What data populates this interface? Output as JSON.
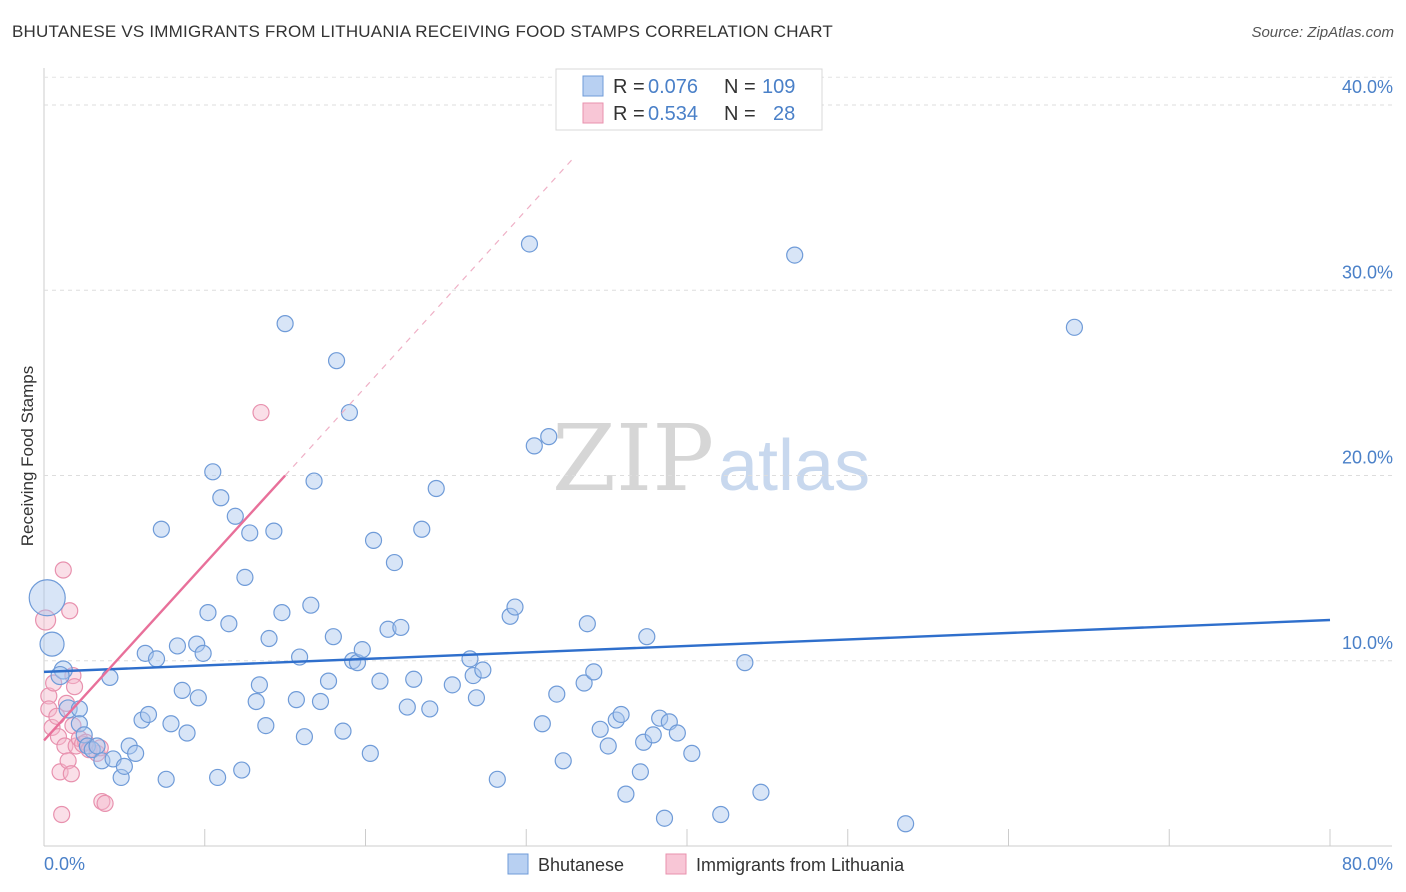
{
  "title": "BHUTANESE VS IMMIGRANTS FROM LITHUANIA RECEIVING FOOD STAMPS CORRELATION CHART",
  "source": "Source: ZipAtlas.com",
  "watermark": {
    "zip": "ZIP",
    "atlas": "atlas"
  },
  "legend": {
    "rows": [
      {
        "r_label": "R = ",
        "r_value": "0.076",
        "n_label": "N = ",
        "n_value": "109"
      },
      {
        "r_label": "R = ",
        "r_value": "0.534",
        "n_label": "N = ",
        "n_value": "28"
      }
    ]
  },
  "bottom_legend": {
    "series1": "Bhutanese",
    "series2": "Immigrants from Lithuania"
  },
  "chart_data": {
    "type": "scatter",
    "ylabel": "Receiving Food Stamps",
    "xlim": [
      0,
      80
    ],
    "ylim": [
      0,
      42
    ],
    "x_tick_labels": [
      "0.0%",
      "80.0%"
    ],
    "y_ticks": [
      10,
      20,
      30,
      40
    ],
    "y_tick_labels": [
      "10.0%",
      "20.0%",
      "30.0%",
      "40.0%"
    ],
    "colors": {
      "blue": "#4a80c8",
      "blue_fill": "#a9c6ee",
      "pink": "#e8709a",
      "pink_fill": "#f5b8cc",
      "text_blue": "#4a80c8"
    },
    "series": [
      {
        "name": "Bhutanese",
        "color": "#a9c6ee",
        "stroke": "#6f9bd8",
        "trend": {
          "x": [
            0,
            80
          ],
          "y": [
            9.4,
            12.2
          ],
          "style": "solid",
          "color": "#2f6fcc"
        },
        "points": [
          [
            0.2,
            13.4,
            18
          ],
          [
            0.5,
            10.9,
            12
          ],
          [
            1.2,
            9.5,
            9
          ],
          [
            1.0,
            9.2,
            9
          ],
          [
            1.5,
            7.4,
            9
          ],
          [
            2.2,
            7.4,
            8
          ],
          [
            2.2,
            6.6,
            8
          ],
          [
            2.5,
            6.0,
            8
          ],
          [
            2.7,
            5.4,
            8
          ],
          [
            3.0,
            5.2,
            8
          ],
          [
            3.3,
            5.4,
            8
          ],
          [
            3.6,
            4.6,
            8
          ],
          [
            4.3,
            4.7,
            8
          ],
          [
            4.8,
            3.7,
            8
          ],
          [
            5.0,
            4.3,
            8
          ],
          [
            5.3,
            5.4,
            8
          ],
          [
            5.7,
            5.0,
            8
          ],
          [
            4.1,
            9.1,
            8
          ],
          [
            6.1,
            6.8,
            8
          ],
          [
            6.5,
            7.1,
            8
          ],
          [
            6.3,
            10.4,
            8
          ],
          [
            7.0,
            10.1,
            8
          ],
          [
            7.3,
            17.1,
            8
          ],
          [
            7.6,
            3.6,
            8
          ],
          [
            7.9,
            6.6,
            8
          ],
          [
            8.3,
            10.8,
            8
          ],
          [
            8.6,
            8.4,
            8
          ],
          [
            8.9,
            6.1,
            8
          ],
          [
            9.5,
            10.9,
            8
          ],
          [
            9.6,
            8.0,
            8
          ],
          [
            9.9,
            10.4,
            8
          ],
          [
            10.2,
            12.6,
            8
          ],
          [
            10.5,
            20.2,
            8
          ],
          [
            10.8,
            3.7,
            8
          ],
          [
            11.0,
            18.8,
            8
          ],
          [
            11.5,
            12.0,
            8
          ],
          [
            11.9,
            17.8,
            8
          ],
          [
            12.3,
            4.1,
            8
          ],
          [
            12.5,
            14.5,
            8
          ],
          [
            12.8,
            16.9,
            8
          ],
          [
            13.2,
            7.8,
            8
          ],
          [
            13.4,
            8.7,
            8
          ],
          [
            13.8,
            6.5,
            8
          ],
          [
            14.0,
            11.2,
            8
          ],
          [
            14.3,
            17.0,
            8
          ],
          [
            14.8,
            12.6,
            8
          ],
          [
            15.0,
            28.2,
            8
          ],
          [
            15.7,
            7.9,
            8
          ],
          [
            15.9,
            10.2,
            8
          ],
          [
            16.2,
            5.9,
            8
          ],
          [
            16.6,
            13.0,
            8
          ],
          [
            16.8,
            19.7,
            8
          ],
          [
            17.2,
            7.8,
            8
          ],
          [
            17.7,
            8.9,
            8
          ],
          [
            18.0,
            11.3,
            8
          ],
          [
            18.2,
            26.2,
            8
          ],
          [
            18.6,
            6.2,
            8
          ],
          [
            19.0,
            23.4,
            8
          ],
          [
            19.2,
            10.0,
            8
          ],
          [
            19.5,
            9.9,
            8
          ],
          [
            19.8,
            10.6,
            8
          ],
          [
            20.3,
            5.0,
            8
          ],
          [
            20.5,
            16.5,
            8
          ],
          [
            20.9,
            8.9,
            8
          ],
          [
            21.4,
            11.7,
            8
          ],
          [
            21.8,
            15.3,
            8
          ],
          [
            22.2,
            11.8,
            8
          ],
          [
            22.6,
            7.5,
            8
          ],
          [
            23.0,
            9.0,
            8
          ],
          [
            23.5,
            17.1,
            8
          ],
          [
            24.0,
            7.4,
            8
          ],
          [
            24.4,
            19.3,
            8
          ],
          [
            25.4,
            8.7,
            8
          ],
          [
            26.5,
            10.1,
            8
          ],
          [
            26.7,
            9.2,
            8
          ],
          [
            26.9,
            8.0,
            8
          ],
          [
            27.3,
            9.5,
            8
          ],
          [
            28.2,
            3.6,
            8
          ],
          [
            29.0,
            12.4,
            8
          ],
          [
            29.3,
            12.9,
            8
          ],
          [
            30.2,
            32.5,
            8
          ],
          [
            30.5,
            21.6,
            8
          ],
          [
            31.0,
            6.6,
            8
          ],
          [
            31.4,
            22.1,
            8
          ],
          [
            31.9,
            8.2,
            8
          ],
          [
            32.3,
            4.6,
            8
          ],
          [
            33.6,
            8.8,
            8
          ],
          [
            33.8,
            12.0,
            8
          ],
          [
            34.2,
            9.4,
            8
          ],
          [
            34.6,
            6.3,
            8
          ],
          [
            35.1,
            5.4,
            8
          ],
          [
            35.6,
            6.8,
            8
          ],
          [
            35.9,
            7.1,
            8
          ],
          [
            36.2,
            2.8,
            8
          ],
          [
            37.1,
            4.0,
            8
          ],
          [
            37.3,
            5.6,
            8
          ],
          [
            37.5,
            11.3,
            8
          ],
          [
            37.9,
            6.0,
            8
          ],
          [
            38.3,
            6.9,
            8
          ],
          [
            38.6,
            1.5,
            8
          ],
          [
            38.9,
            6.7,
            8
          ],
          [
            39.4,
            6.1,
            8
          ],
          [
            40.3,
            5.0,
            8
          ],
          [
            42.1,
            1.7,
            8
          ],
          [
            43.6,
            9.9,
            8
          ],
          [
            44.6,
            2.9,
            8
          ],
          [
            46.7,
            31.9,
            8
          ],
          [
            53.6,
            1.2,
            8
          ],
          [
            64.1,
            28.0,
            8
          ]
        ]
      },
      {
        "name": "Immigrants from Lithuania",
        "color": "#f5b8cc",
        "stroke": "#e891ae",
        "trend": {
          "x": [
            0,
            15
          ],
          "y": [
            5.7,
            20.0
          ],
          "style": "solid",
          "color": "#e8709a",
          "extension": {
            "x": [
              15,
              33
            ],
            "y": [
              20.0,
              37.2
            ],
            "style": "dashed"
          }
        },
        "points": [
          [
            0.1,
            12.2,
            10
          ],
          [
            0.3,
            8.1,
            8
          ],
          [
            0.3,
            7.4,
            8
          ],
          [
            0.5,
            6.4,
            8
          ],
          [
            0.6,
            8.8,
            8
          ],
          [
            0.8,
            7.0,
            8
          ],
          [
            0.9,
            5.9,
            8
          ],
          [
            1.0,
            4.0,
            8
          ],
          [
            1.1,
            1.7,
            8
          ],
          [
            1.2,
            14.9,
            8
          ],
          [
            1.3,
            5.4,
            8
          ],
          [
            1.4,
            7.7,
            8
          ],
          [
            1.5,
            4.6,
            8
          ],
          [
            1.6,
            12.7,
            8
          ],
          [
            1.7,
            3.9,
            8
          ],
          [
            1.8,
            9.2,
            8
          ],
          [
            1.8,
            6.5,
            8
          ],
          [
            1.9,
            8.6,
            8
          ],
          [
            2.0,
            5.4,
            8
          ],
          [
            2.2,
            5.8,
            8
          ],
          [
            2.4,
            5.5,
            8
          ],
          [
            2.6,
            5.6,
            8
          ],
          [
            2.8,
            5.2,
            8
          ],
          [
            3.3,
            5.0,
            8
          ],
          [
            3.5,
            5.3,
            8
          ],
          [
            3.6,
            2.4,
            8
          ],
          [
            3.8,
            2.3,
            8
          ],
          [
            13.5,
            23.4,
            8
          ]
        ]
      }
    ]
  }
}
